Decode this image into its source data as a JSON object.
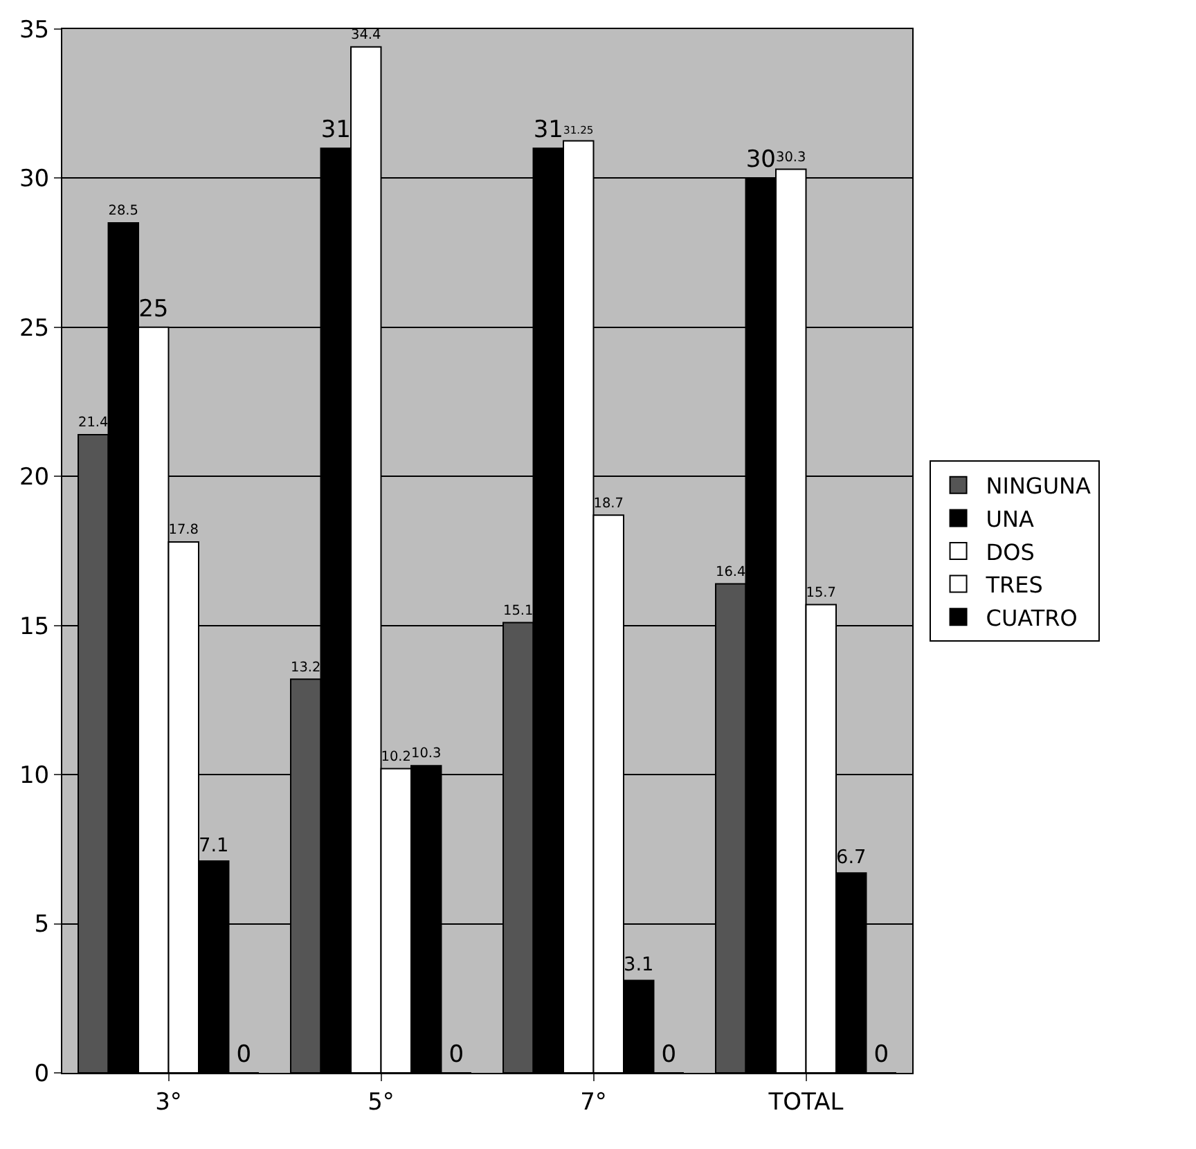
{
  "chart_data": {
    "type": "bar",
    "categories": [
      "3°",
      "5°",
      "7°",
      "TOTAL"
    ],
    "series": [
      {
        "name": "NINGUNA",
        "color": "#555555",
        "values": [
          21.4,
          13.2,
          15.1,
          16.4
        ]
      },
      {
        "name": "UNA",
        "color": "#000000",
        "values": [
          28.5,
          31,
          31,
          30
        ]
      },
      {
        "name": "DOS",
        "color": "#ffffff",
        "values": [
          25,
          34.4,
          31.25,
          30.3
        ]
      },
      {
        "name": "TRES",
        "color": "#ffffff",
        "values": [
          17.8,
          10.2,
          18.7,
          15.7
        ]
      },
      {
        "name": "CUATRO",
        "color": "#000000",
        "values": [
          7.1,
          10.3,
          3.1,
          6.7
        ]
      },
      {
        "color": "#000000",
        "values": [
          0,
          0,
          0,
          0
        ]
      }
    ],
    "ylim": [
      0,
      35
    ],
    "yticks": [
      0,
      5,
      10,
      15,
      20,
      25,
      30,
      35
    ],
    "grid": "y",
    "legend": "right",
    "data_labels": true
  }
}
